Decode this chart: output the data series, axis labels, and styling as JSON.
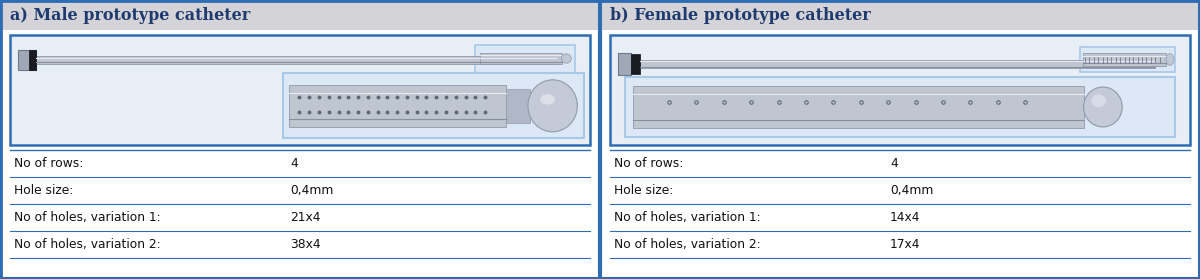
{
  "panel_a_title": "a) Male prototype catheter",
  "panel_b_title": "b) Female prototype catheter",
  "panel_a_rows": [
    [
      "No of rows:",
      "4"
    ],
    [
      "Hole size:",
      "0,4mm"
    ],
    [
      "No of holes, variation 1:",
      "21x4"
    ],
    [
      "No of holes, variation 2:",
      "38x4"
    ]
  ],
  "panel_b_rows": [
    [
      "No of rows:",
      "4"
    ],
    [
      "Hole size:",
      "0,4mm"
    ],
    [
      "No of holes, variation 1:",
      "14x4"
    ],
    [
      "No of holes, variation 2:",
      "17x4"
    ]
  ],
  "bg_color": "#d4d4d8",
  "panel_bg": "#ffffff",
  "title_color": "#1e3a6e",
  "title_fontsize": 11.5,
  "table_fontsize": 8.8,
  "outer_border_color": "#2e6db4",
  "inner_box_color": "#a8c8e8",
  "image_area_bg": "#e8eef5",
  "tube_color": "#b8bec8",
  "tube_edge": "#909aaa",
  "connector_color": "#2d2d35",
  "dot_color": "#606878",
  "ball_color": "#c8cdd8"
}
